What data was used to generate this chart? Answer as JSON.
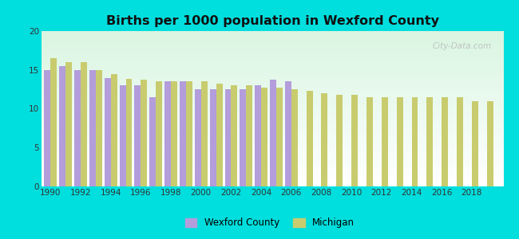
{
  "title": "Births per 1000 population in Wexford County",
  "background_color": "#00dede",
  "ylim": [
    0,
    20
  ],
  "yticks": [
    0,
    5,
    10,
    15,
    20
  ],
  "wexford_color": "#b39ddb",
  "michigan_color": "#c8cc6e",
  "years_wexford": [
    1990,
    1991,
    1992,
    1993,
    1994,
    1995,
    1996,
    1997,
    1998,
    1999,
    2000,
    2001,
    2002,
    2003,
    2004,
    2005,
    2006
  ],
  "values_wexford": [
    15.0,
    15.5,
    15.0,
    15.0,
    14.0,
    13.0,
    13.0,
    11.5,
    13.5,
    13.5,
    12.5,
    12.5,
    12.5,
    12.5,
    13.0,
    13.7,
    13.5
  ],
  "years_michigan": [
    1990,
    1991,
    1992,
    1993,
    1994,
    1995,
    1996,
    1997,
    1998,
    1999,
    2000,
    2001,
    2002,
    2003,
    2004,
    2005,
    2006,
    2007,
    2008,
    2009,
    2010,
    2011,
    2012,
    2013,
    2014,
    2015,
    2016,
    2017,
    2018,
    2019
  ],
  "values_michigan": [
    16.5,
    16.0,
    16.0,
    15.0,
    14.5,
    13.8,
    13.7,
    13.5,
    13.5,
    13.5,
    13.5,
    13.2,
    13.0,
    13.0,
    12.7,
    12.7,
    12.5,
    12.3,
    12.0,
    11.8,
    11.8,
    11.5,
    11.5,
    11.5,
    11.5,
    11.5,
    11.5,
    11.5,
    11.0,
    11.0
  ],
  "xticks": [
    1990,
    1992,
    1994,
    1996,
    1998,
    2000,
    2002,
    2004,
    2006,
    2008,
    2010,
    2012,
    2014,
    2016,
    2018
  ],
  "bar_width": 0.42,
  "watermark": "City-Data.com"
}
